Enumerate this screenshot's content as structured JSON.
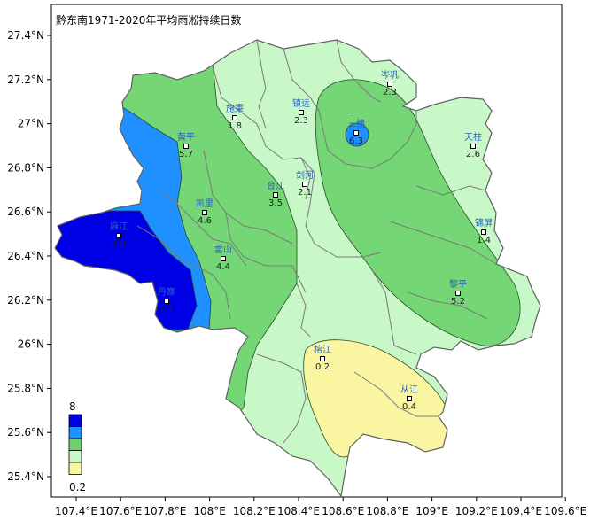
{
  "title": "黔东南1971-2020年平均雨凇持续日数",
  "axes": {
    "x_ticks": [
      "107.4°E",
      "107.6°E",
      "107.8°E",
      "108°E",
      "108.2°E",
      "108.4°E",
      "108.6°E",
      "108.8°E",
      "109°E",
      "109.2°E",
      "109.4°E",
      "109.6°E"
    ],
    "y_ticks": [
      "27.4°N",
      "27.2°N",
      "27°N",
      "26.8°N",
      "26.6°N",
      "26.4°N",
      "26.2°N",
      "26°N",
      "25.8°N",
      "25.6°N",
      "25.4°N"
    ]
  },
  "legend": {
    "max_label": "8",
    "min_label": "0.2",
    "colors": [
      "#0000e6",
      "#1e90ff",
      "#6fd06f",
      "#c8f7c8",
      "#faf5a0"
    ]
  },
  "colors": {
    "outside_fill": "#ffffff",
    "base_fill": "#c8f7c8",
    "mid_fill": "#74d674",
    "blue_fill": "#1e90ff",
    "dark_blue_fill": "#0000e6",
    "yellow_fill": "#faf5a0",
    "station_name_color": "#2a62b8"
  },
  "stations": [
    {
      "name": "岑巩",
      "value": "2.3"
    },
    {
      "name": "施秉",
      "value": "1.8"
    },
    {
      "name": "镇远",
      "value": "2.3"
    },
    {
      "name": "三穗",
      "value": "6.3"
    },
    {
      "name": "天柱",
      "value": "2.6"
    },
    {
      "name": "黄平",
      "value": "5.7"
    },
    {
      "name": "台江",
      "value": "3.5"
    },
    {
      "name": "剑河",
      "value": "2.1"
    },
    {
      "name": "凯里",
      "value": "4.6"
    },
    {
      "name": "锦屏",
      "value": "1.4"
    },
    {
      "name": "麻江",
      "value": "8.0"
    },
    {
      "name": "雷山",
      "value": "4.4"
    },
    {
      "name": "丹寨",
      "value": "7.1"
    },
    {
      "name": "黎平",
      "value": "5.2"
    },
    {
      "name": "榕江",
      "value": "0.2"
    },
    {
      "name": "从江",
      "value": "0.4"
    }
  ]
}
